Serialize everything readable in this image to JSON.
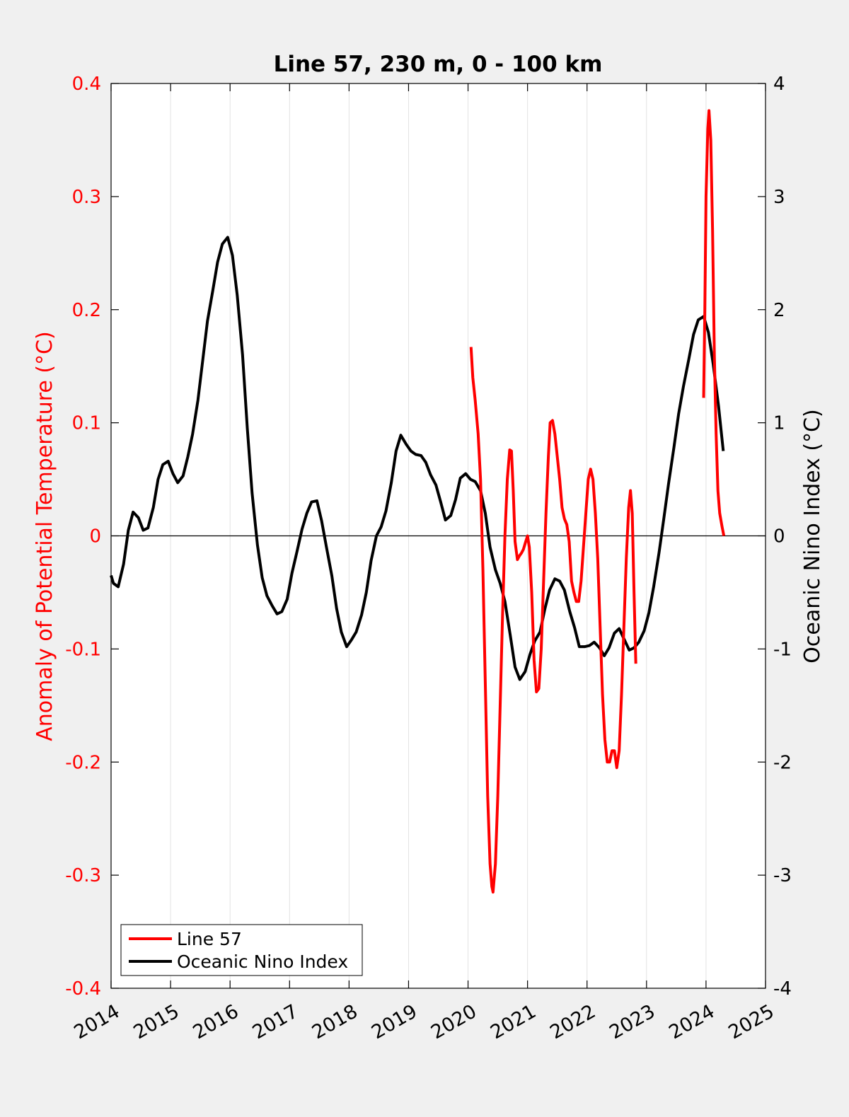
{
  "chart_data": {
    "type": "line",
    "title": "Line 57, 230 m, 0 - 100 km",
    "xlabel": "",
    "ylabel_left": "Anomaly of Potential Temperature (°C)",
    "ylabel_right": "Oceanic Nino Index (°C)",
    "xlim": [
      2014,
      2025
    ],
    "ylim_left": [
      -0.4,
      0.4
    ],
    "ylim_right": [
      -4,
      4
    ],
    "x_ticks": [
      "2014",
      "2015",
      "2016",
      "2017",
      "2018",
      "2019",
      "2020",
      "2021",
      "2022",
      "2023",
      "2024",
      "2025"
    ],
    "y_left_ticks": [
      "-0.4",
      "-0.3",
      "-0.2",
      "-0.1",
      "0",
      "0.1",
      "0.2",
      "0.3",
      "0.4"
    ],
    "y_right_ticks": [
      "-4",
      "-3",
      "-2",
      "-1",
      "0",
      "1",
      "2",
      "3",
      "4"
    ],
    "grid": "vertical",
    "zero_line": true,
    "legend_position": "bottom-left",
    "series": [
      {
        "name": "Line 57",
        "axis": "left",
        "color": "#ff0000",
        "segments": [
          [
            [
              2020.05,
              0.167
            ],
            [
              2020.08,
              0.14
            ],
            [
              2020.12,
              0.12
            ],
            [
              2020.17,
              0.09
            ],
            [
              2020.21,
              0.05
            ],
            [
              2020.25,
              -0.03
            ],
            [
              2020.29,
              -0.13
            ],
            [
              2020.33,
              -0.23
            ],
            [
              2020.37,
              -0.29
            ],
            [
              2020.4,
              -0.31
            ],
            [
              2020.42,
              -0.315
            ],
            [
              2020.46,
              -0.29
            ],
            [
              2020.5,
              -0.23
            ],
            [
              2020.54,
              -0.15
            ],
            [
              2020.58,
              -0.07
            ],
            [
              2020.62,
              0.0
            ],
            [
              2020.66,
              0.05
            ],
            [
              2020.7,
              0.076
            ],
            [
              2020.73,
              0.075
            ],
            [
              2020.76,
              0.04
            ],
            [
              2020.79,
              -0.005
            ],
            [
              2020.83,
              -0.021
            ],
            [
              2020.86,
              -0.018
            ],
            [
              2020.9,
              -0.015
            ],
            [
              2020.93,
              -0.012
            ],
            [
              2020.97,
              -0.005
            ],
            [
              2021.0,
              0.0
            ],
            [
              2021.03,
              -0.01
            ],
            [
              2021.07,
              -0.05
            ],
            [
              2021.11,
              -0.11
            ],
            [
              2021.15,
              -0.138
            ],
            [
              2021.19,
              -0.135
            ],
            [
              2021.23,
              -0.1
            ],
            [
              2021.27,
              -0.04
            ],
            [
              2021.31,
              0.02
            ],
            [
              2021.35,
              0.07
            ],
            [
              2021.38,
              0.1
            ],
            [
              2021.42,
              0.102
            ],
            [
              2021.46,
              0.09
            ],
            [
              2021.5,
              0.07
            ],
            [
              2021.54,
              0.05
            ],
            [
              2021.58,
              0.025
            ],
            [
              2021.62,
              0.015
            ],
            [
              2021.66,
              0.01
            ],
            [
              2021.7,
              -0.005
            ],
            [
              2021.74,
              -0.04
            ],
            [
              2021.78,
              -0.05
            ],
            [
              2021.82,
              -0.058
            ],
            [
              2021.86,
              -0.058
            ],
            [
              2021.9,
              -0.04
            ],
            [
              2021.94,
              -0.01
            ],
            [
              2021.98,
              0.02
            ],
            [
              2022.02,
              0.05
            ],
            [
              2022.06,
              0.059
            ],
            [
              2022.1,
              0.05
            ],
            [
              2022.14,
              0.02
            ],
            [
              2022.18,
              -0.02
            ],
            [
              2022.22,
              -0.08
            ],
            [
              2022.26,
              -0.14
            ],
            [
              2022.3,
              -0.18
            ],
            [
              2022.34,
              -0.2
            ],
            [
              2022.38,
              -0.2
            ],
            [
              2022.42,
              -0.19
            ],
            [
              2022.46,
              -0.19
            ],
            [
              2022.5,
              -0.205
            ],
            [
              2022.54,
              -0.19
            ],
            [
              2022.58,
              -0.14
            ],
            [
              2022.62,
              -0.08
            ],
            [
              2022.66,
              -0.02
            ],
            [
              2022.7,
              0.025
            ],
            [
              2022.73,
              0.04
            ],
            [
              2022.76,
              0.02
            ],
            [
              2022.79,
              -0.05
            ],
            [
              2022.82,
              -0.113
            ]
          ],
          [
            [
              2023.96,
              0.122
            ],
            [
              2023.98,
              0.2
            ],
            [
              2024.0,
              0.3
            ],
            [
              2024.03,
              0.36
            ],
            [
              2024.05,
              0.376
            ],
            [
              2024.08,
              0.35
            ],
            [
              2024.11,
              0.27
            ],
            [
              2024.14,
              0.16
            ],
            [
              2024.17,
              0.09
            ],
            [
              2024.2,
              0.04
            ],
            [
              2024.23,
              0.02
            ],
            [
              2024.27,
              0.008
            ],
            [
              2024.3,
              0.0
            ]
          ]
        ]
      },
      {
        "name": "Oceanic Nino Index",
        "axis": "right",
        "color": "#000000",
        "points": [
          [
            2014.0,
            -0.35
          ],
          [
            2014.04,
            -0.42
          ],
          [
            2014.12,
            -0.45
          ],
          [
            2014.21,
            -0.25
          ],
          [
            2014.29,
            0.05
          ],
          [
            2014.37,
            0.21
          ],
          [
            2014.46,
            0.16
          ],
          [
            2014.54,
            0.05
          ],
          [
            2014.62,
            0.07
          ],
          [
            2014.71,
            0.25
          ],
          [
            2014.79,
            0.5
          ],
          [
            2014.87,
            0.63
          ],
          [
            2014.96,
            0.66
          ],
          [
            2015.04,
            0.55
          ],
          [
            2015.12,
            0.47
          ],
          [
            2015.21,
            0.53
          ],
          [
            2015.29,
            0.7
          ],
          [
            2015.37,
            0.9
          ],
          [
            2015.46,
            1.2
          ],
          [
            2015.54,
            1.55
          ],
          [
            2015.62,
            1.9
          ],
          [
            2015.71,
            2.17
          ],
          [
            2015.79,
            2.42
          ],
          [
            2015.87,
            2.58
          ],
          [
            2015.96,
            2.64
          ],
          [
            2016.04,
            2.48
          ],
          [
            2016.12,
            2.13
          ],
          [
            2016.21,
            1.6
          ],
          [
            2016.29,
            0.95
          ],
          [
            2016.37,
            0.38
          ],
          [
            2016.46,
            -0.08
          ],
          [
            2016.54,
            -0.37
          ],
          [
            2016.62,
            -0.53
          ],
          [
            2016.71,
            -0.62
          ],
          [
            2016.79,
            -0.69
          ],
          [
            2016.87,
            -0.67
          ],
          [
            2016.96,
            -0.56
          ],
          [
            2017.04,
            -0.33
          ],
          [
            2017.12,
            -0.15
          ],
          [
            2017.21,
            0.06
          ],
          [
            2017.29,
            0.2
          ],
          [
            2017.37,
            0.3
          ],
          [
            2017.46,
            0.31
          ],
          [
            2017.54,
            0.13
          ],
          [
            2017.62,
            -0.1
          ],
          [
            2017.71,
            -0.35
          ],
          [
            2017.79,
            -0.64
          ],
          [
            2017.87,
            -0.85
          ],
          [
            2017.96,
            -0.98
          ],
          [
            2018.04,
            -0.92
          ],
          [
            2018.12,
            -0.85
          ],
          [
            2018.21,
            -0.7
          ],
          [
            2018.29,
            -0.5
          ],
          [
            2018.37,
            -0.22
          ],
          [
            2018.46,
            0.0
          ],
          [
            2018.54,
            0.08
          ],
          [
            2018.62,
            0.22
          ],
          [
            2018.71,
            0.47
          ],
          [
            2018.79,
            0.75
          ],
          [
            2018.87,
            0.89
          ],
          [
            2018.96,
            0.81
          ],
          [
            2019.04,
            0.75
          ],
          [
            2019.12,
            0.72
          ],
          [
            2019.21,
            0.71
          ],
          [
            2019.29,
            0.65
          ],
          [
            2019.37,
            0.54
          ],
          [
            2019.46,
            0.45
          ],
          [
            2019.54,
            0.3
          ],
          [
            2019.62,
            0.14
          ],
          [
            2019.71,
            0.18
          ],
          [
            2019.79,
            0.32
          ],
          [
            2019.87,
            0.51
          ],
          [
            2019.96,
            0.55
          ],
          [
            2020.04,
            0.5
          ],
          [
            2020.12,
            0.48
          ],
          [
            2020.21,
            0.4
          ],
          [
            2020.29,
            0.2
          ],
          [
            2020.37,
            -0.1
          ],
          [
            2020.46,
            -0.3
          ],
          [
            2020.54,
            -0.42
          ],
          [
            2020.62,
            -0.58
          ],
          [
            2020.71,
            -0.88
          ],
          [
            2020.79,
            -1.16
          ],
          [
            2020.87,
            -1.27
          ],
          [
            2020.96,
            -1.2
          ],
          [
            2021.04,
            -1.05
          ],
          [
            2021.12,
            -0.93
          ],
          [
            2021.21,
            -0.85
          ],
          [
            2021.29,
            -0.65
          ],
          [
            2021.37,
            -0.48
          ],
          [
            2021.46,
            -0.38
          ],
          [
            2021.54,
            -0.4
          ],
          [
            2021.62,
            -0.48
          ],
          [
            2021.71,
            -0.67
          ],
          [
            2021.79,
            -0.81
          ],
          [
            2021.87,
            -0.98
          ],
          [
            2021.96,
            -0.98
          ],
          [
            2022.04,
            -0.97
          ],
          [
            2022.12,
            -0.94
          ],
          [
            2022.21,
            -0.99
          ],
          [
            2022.29,
            -1.06
          ],
          [
            2022.37,
            -0.99
          ],
          [
            2022.46,
            -0.86
          ],
          [
            2022.54,
            -0.82
          ],
          [
            2022.62,
            -0.91
          ],
          [
            2022.71,
            -1.01
          ],
          [
            2022.79,
            -0.99
          ],
          [
            2022.87,
            -0.94
          ],
          [
            2022.96,
            -0.84
          ],
          [
            2023.04,
            -0.68
          ],
          [
            2023.12,
            -0.45
          ],
          [
            2023.21,
            -0.15
          ],
          [
            2023.29,
            0.15
          ],
          [
            2023.37,
            0.46
          ],
          [
            2023.46,
            0.78
          ],
          [
            2023.54,
            1.08
          ],
          [
            2023.62,
            1.32
          ],
          [
            2023.71,
            1.56
          ],
          [
            2023.79,
            1.78
          ],
          [
            2023.87,
            1.91
          ],
          [
            2023.96,
            1.94
          ],
          [
            2024.04,
            1.8
          ],
          [
            2024.12,
            1.52
          ],
          [
            2024.21,
            1.15
          ],
          [
            2024.29,
            0.75
          ]
        ]
      }
    ]
  }
}
